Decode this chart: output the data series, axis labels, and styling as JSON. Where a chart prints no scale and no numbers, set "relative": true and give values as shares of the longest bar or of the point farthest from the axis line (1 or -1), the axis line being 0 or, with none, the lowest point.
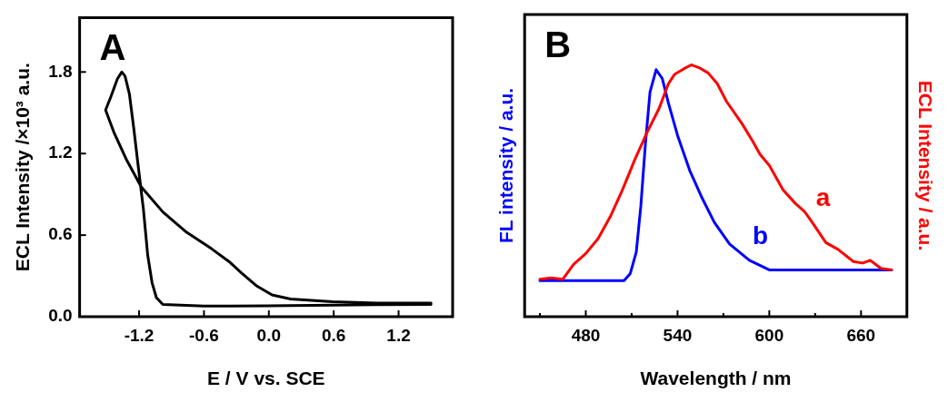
{
  "chart_data": [
    {
      "type": "line",
      "xlabel": "E / V vs. SCE",
      "ylabel": "ECL Intensity /×10³ a.u.",
      "annotations": [
        "A"
      ],
      "xlim": [
        -1.75,
        1.7
      ],
      "xticks": [
        -1.2,
        -0.6,
        {
          "value": 0,
          "label": "0.0"
        },
        0.6,
        1.2
      ],
      "ylim": [
        0,
        2.2
      ],
      "yticks": [
        {
          "value": 0,
          "label": "0.0"
        },
        0.6,
        1.2,
        1.8
      ],
      "grid": false,
      "legend": false,
      "series": [
        {
          "color": "#000000",
          "x": [
            1.5,
            1.0,
            0.6,
            0.0,
            -0.6,
            -0.98,
            -1.04,
            -1.08,
            -1.12,
            -1.16,
            -1.21,
            -1.25,
            -1.29,
            -1.33,
            -1.36,
            -1.4,
            -1.46,
            -1.51,
            -1.43,
            -1.32,
            -1.18,
            -0.98,
            -0.76,
            -0.53,
            -0.36,
            -0.25,
            -0.11,
            0.03,
            0.2,
            0.59,
            1.0,
            1.5
          ],
          "values": [
            0.09,
            0.088,
            0.085,
            0.08,
            0.078,
            0.09,
            0.14,
            0.25,
            0.45,
            0.79,
            1.12,
            1.39,
            1.64,
            1.77,
            1.8,
            1.75,
            1.62,
            1.52,
            1.35,
            1.16,
            0.955,
            0.77,
            0.62,
            0.5,
            0.4,
            0.32,
            0.225,
            0.16,
            0.13,
            0.11,
            0.1,
            0.1
          ]
        }
      ]
    },
    {
      "type": "line",
      "relative": true,
      "xlabel": "Wavelength / nm",
      "ylabel": "FL intensity / a.u.",
      "y2label": "ECL Intensity / a.u.",
      "annotations": [
        "B"
      ],
      "xlim": [
        440,
        690
      ],
      "xticks": [
        {
          "value": 450,
          "label": null
        },
        480,
        {
          "value": 510,
          "label": null
        },
        540,
        {
          "value": 570,
          "label": null
        },
        600,
        {
          "value": 630,
          "label": null
        },
        660
      ],
      "grid": false,
      "legend": false,
      "series": [
        {
          "name": "a",
          "color": "#ff0000",
          "axis": "y2",
          "x": [
            450,
            457,
            465,
            472,
            480,
            488,
            496,
            504,
            512,
            520,
            528,
            534,
            538,
            544,
            549,
            554,
            560,
            566,
            572,
            582,
            589,
            594,
            600,
            609,
            617,
            623,
            628,
            637,
            645,
            655,
            661,
            666,
            673,
            680
          ],
          "values": [
            0.149,
            0.154,
            0.149,
            0.208,
            0.251,
            0.31,
            0.397,
            0.504,
            0.623,
            0.731,
            0.828,
            0.925,
            0.962,
            0.984,
            1.0,
            0.989,
            0.968,
            0.925,
            0.855,
            0.768,
            0.698,
            0.644,
            0.601,
            0.504,
            0.45,
            0.418,
            0.375,
            0.294,
            0.267,
            0.219,
            0.213,
            0.224,
            0.192,
            0.186
          ]
        },
        {
          "name": "b",
          "color": "#0000ff",
          "x": [
            450,
            480,
            505,
            509,
            513,
            516,
            519,
            522,
            526,
            530,
            534,
            540,
            548,
            556,
            564,
            574,
            587,
            600,
            640,
            680
          ],
          "values": [
            0.143,
            0.143,
            0.143,
            0.17,
            0.256,
            0.44,
            0.688,
            0.892,
            0.981,
            0.946,
            0.849,
            0.72,
            0.58,
            0.472,
            0.375,
            0.289,
            0.224,
            0.186,
            0.186,
            0.186
          ]
        }
      ]
    }
  ]
}
